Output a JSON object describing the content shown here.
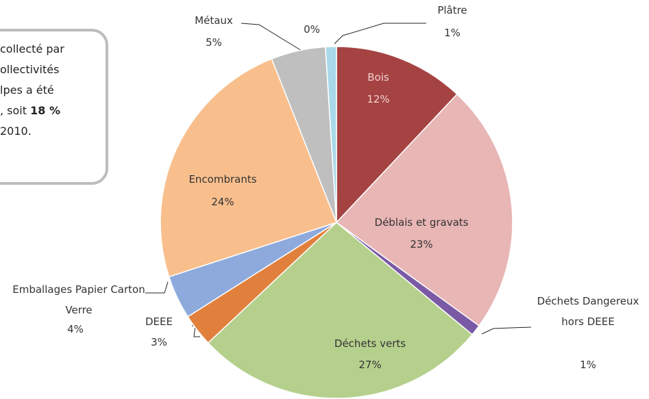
{
  "chart_data": {
    "type": "pie",
    "categories": [
      "Bois",
      "Déblais et gravats",
      "Déchets Dangereux hors DEEE",
      "Déchets verts",
      "DEEE",
      "Emballages Papier Carton Verre",
      "Encombrants",
      "Métaux",
      null,
      "Plâtre"
    ],
    "values": [
      12,
      23,
      1,
      27,
      3,
      4,
      24,
      5,
      0,
      1
    ],
    "value_labels": [
      "12%",
      "23%",
      "1%",
      "27%",
      "3%",
      "4%",
      "24%",
      "5%",
      "0%",
      "1%"
    ],
    "colors": [
      "#a54343",
      "#e8b6b5",
      "#7a5aa5",
      "#b5d08c",
      "#e1803c",
      "#8eaadc",
      "#f8bf8d",
      "#bfbfbf",
      "#4f81bd",
      "#a9d9e9"
    ],
    "note_lines": [
      {
        "text": "collecté par"
      },
      {
        "text": "ollectivités"
      },
      {
        "text": "lpes a été"
      },
      {
        "text": ", soit ",
        "bold": "18 %"
      },
      {
        "text": "2010."
      }
    ]
  }
}
